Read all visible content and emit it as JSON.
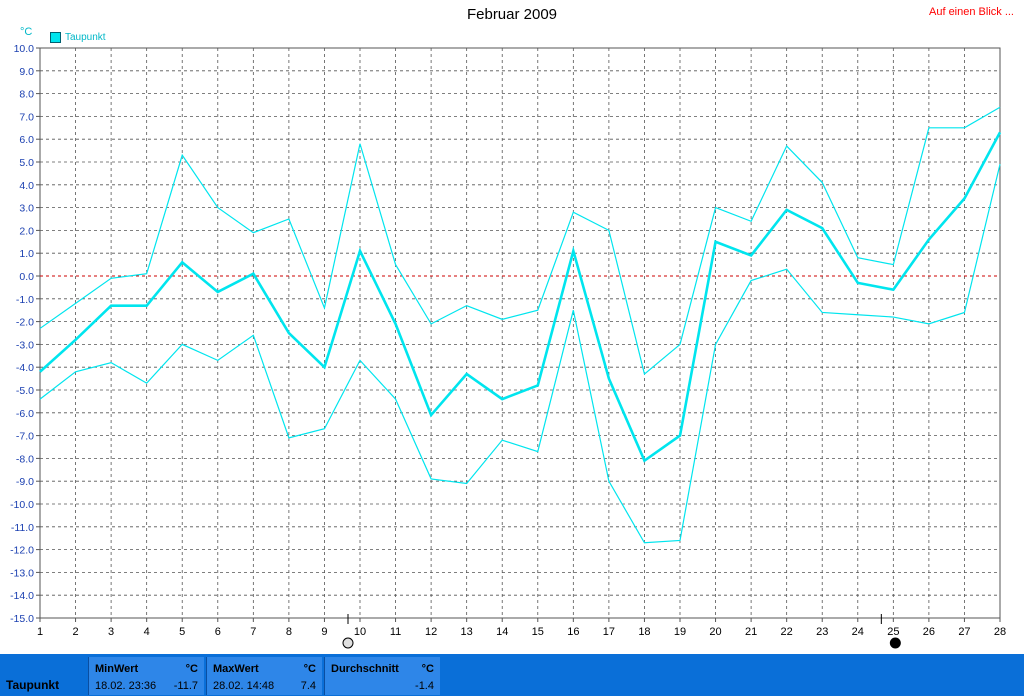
{
  "header": {
    "title": "Februar 2009",
    "link_label": "Auf einen Blick ...",
    "unit": "°C"
  },
  "chart_data": {
    "type": "line",
    "title": "Februar 2009",
    "ylabel": "°C",
    "ylim": [
      -15,
      10
    ],
    "y_ticks": [
      "10.0",
      "9.0",
      "8.0",
      "7.0",
      "6.0",
      "5.0",
      "4.0",
      "3.0",
      "2.0",
      "1.0",
      "0.0",
      "-1.0",
      "-2.0",
      "-3.0",
      "-4.0",
      "-5.0",
      "-6.0",
      "-7.0",
      "-8.0",
      "-9.0",
      "-10.0",
      "-11.0",
      "-12.0",
      "-13.0",
      "-14.0",
      "-15.0"
    ],
    "x": [
      1,
      2,
      3,
      4,
      5,
      6,
      7,
      8,
      9,
      10,
      11,
      12,
      13,
      14,
      15,
      16,
      17,
      18,
      19,
      20,
      21,
      22,
      23,
      24,
      25,
      26,
      27,
      28
    ],
    "grid": true,
    "legend_position": "top-left",
    "zero_line_color": "#cc0000",
    "series_color": "#00e5ee",
    "series": [
      {
        "name": "Taupunkt",
        "role": "avg",
        "values": [
          -4.2,
          -2.8,
          -1.3,
          -1.3,
          0.6,
          -0.7,
          0.1,
          -2.5,
          -4.0,
          1.1,
          -2.1,
          -6.1,
          -4.3,
          -5.4,
          -4.8,
          1.1,
          -4.5,
          -8.1,
          -7.0,
          1.5,
          0.9,
          2.9,
          2.1,
          -0.3,
          -0.6,
          1.6,
          3.4,
          6.3
        ]
      },
      {
        "role": "max",
        "values": [
          -2.3,
          -1.2,
          -0.1,
          0.1,
          5.3,
          3.0,
          1.9,
          2.5,
          -1.4,
          5.8,
          0.5,
          -2.1,
          -1.3,
          -1.9,
          -1.5,
          2.8,
          2.0,
          -4.3,
          -3.0,
          3.0,
          2.4,
          5.7,
          4.1,
          0.8,
          0.5,
          6.5,
          6.5,
          7.4
        ]
      },
      {
        "role": "min",
        "values": [
          -5.4,
          -4.2,
          -3.8,
          -4.7,
          -3.0,
          -3.7,
          -2.6,
          -7.1,
          -6.7,
          -3.7,
          -5.4,
          -8.9,
          -9.1,
          -7.2,
          -7.7,
          -1.5,
          -9.0,
          -11.7,
          -11.6,
          -3.0,
          -0.2,
          0.3,
          -1.6,
          -1.7,
          -1.8,
          -2.1,
          -1.6,
          4.9
        ]
      }
    ],
    "markers": [
      {
        "x": 10,
        "type": "hollow-circle"
      },
      {
        "x": 25,
        "type": "filled-circle"
      }
    ]
  },
  "footer": {
    "series_label": "Taupunkt",
    "min": {
      "label": "MinWert",
      "unit": "°C",
      "date": "18.02.  23:36",
      "value": "-11.7"
    },
    "max": {
      "label": "MaxWert",
      "unit": "°C",
      "date": "28.02.  14:48",
      "value": "7.4"
    },
    "avg": {
      "label": "Durchschnitt",
      "unit": "°C",
      "value": "-1.4"
    }
  }
}
